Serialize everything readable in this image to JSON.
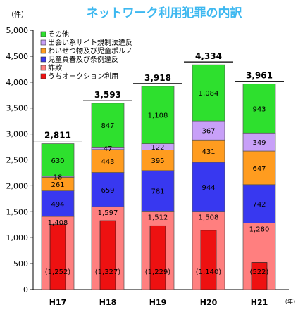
{
  "chart_data": {
    "type": "bar",
    "stacked": true,
    "title": "ネットワーク利用犯罪の内訳",
    "ylabel": "（件）",
    "xlabel": "（年）",
    "ylim": [
      0,
      5000
    ],
    "yticks": [
      "0",
      "500",
      "1,000",
      "1,500",
      "2,000",
      "2,500",
      "3,000",
      "3,500",
      "4,000",
      "4,500",
      "5,000"
    ],
    "categories": [
      "H17",
      "H18",
      "H19",
      "H20",
      "H21"
    ],
    "series": [
      {
        "name": "詐欺",
        "color": "#ff7f7f",
        "values": [
          1408,
          1597,
          1512,
          1508,
          1280
        ],
        "labels": [
          "1,408",
          "1,597",
          "1,512",
          "1,508",
          "1,280"
        ]
      },
      {
        "name": "児童買春及び条例違反",
        "color": "#3838f0",
        "values": [
          494,
          659,
          781,
          944,
          742
        ],
        "labels": [
          "494",
          "659",
          "781",
          "944",
          "742"
        ]
      },
      {
        "name": "わいせつ物及び児童ポルノ",
        "color": "#ff9c1f",
        "values": [
          261,
          443,
          395,
          431,
          647
        ],
        "labels": [
          "261",
          "443",
          "395",
          "431",
          "647"
        ]
      },
      {
        "name": "出会い系サイト規制法違反",
        "color": "#c8a0f8",
        "values": [
          18,
          47,
          122,
          367,
          349
        ],
        "labels": [
          "18",
          "47",
          "122",
          "367",
          "349"
        ]
      },
      {
        "name": "その他",
        "color": "#2ee02e",
        "values": [
          630,
          847,
          1108,
          1084,
          943
        ],
        "labels": [
          "630",
          "847",
          "1,108",
          "1,084",
          "943"
        ]
      }
    ],
    "overlay": {
      "name": "うちオークション利用",
      "color": "#ee1111",
      "values": [
        1252,
        1327,
        1229,
        1140,
        522
      ],
      "labels": [
        "(1,252)",
        "(1,327)",
        "(1,229)",
        "(1,140)",
        "(522)"
      ]
    },
    "totals": [
      "2,811",
      "3,593",
      "3,918",
      "4,334",
      "3,961"
    ],
    "legend_order": [
      "その他",
      "出会い系サイト規制法違反",
      "わいせつ物及び児童ポルノ",
      "児童買春及び条例違反",
      "詐欺",
      "うちオークション利用"
    ],
    "legend_position": "top-left",
    "grid": false
  }
}
